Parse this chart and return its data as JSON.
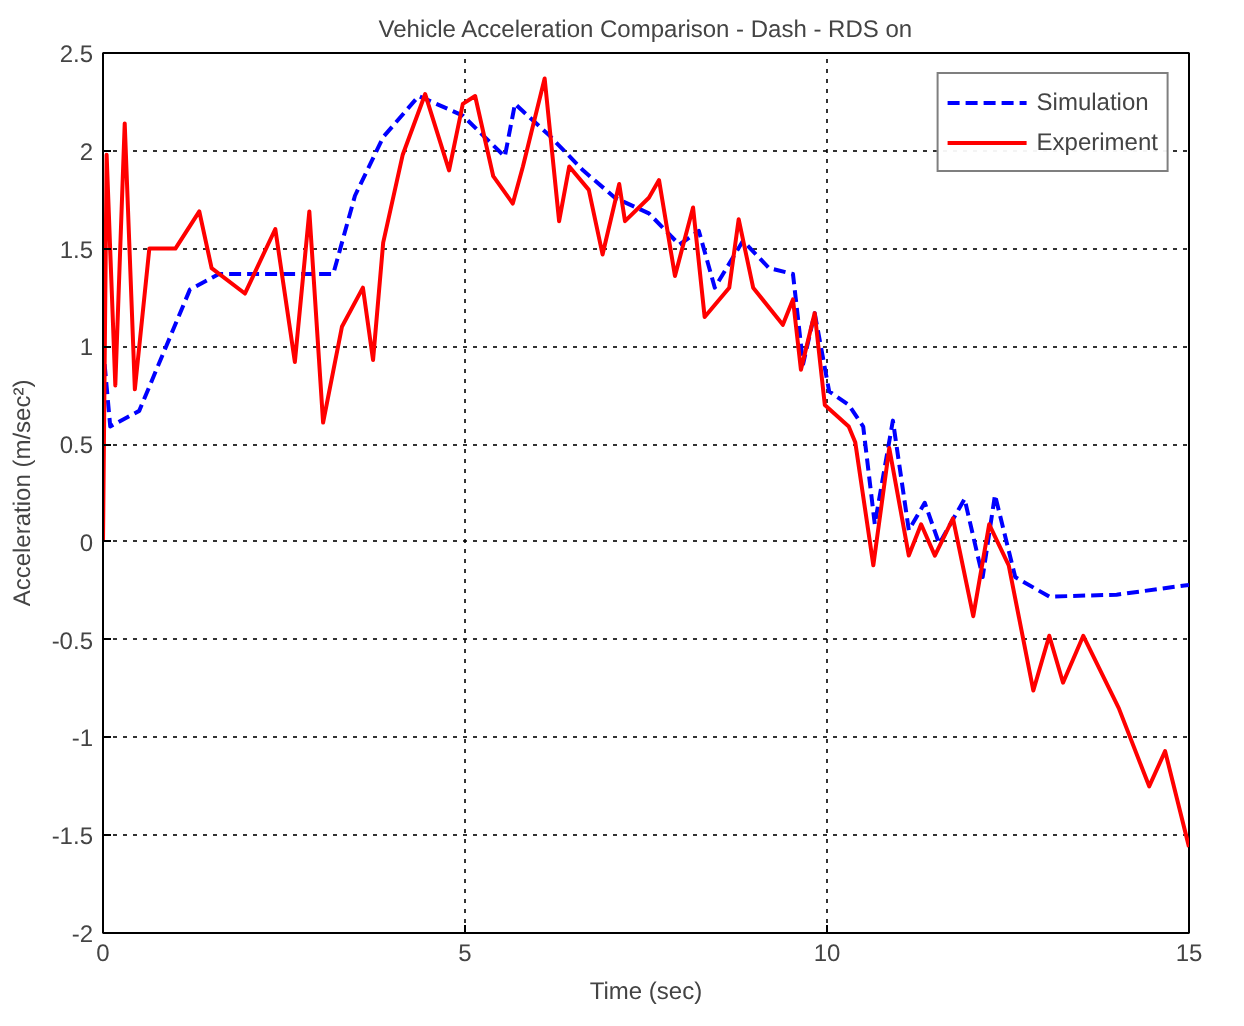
{
  "chart_data": {
    "type": "line",
    "title": "Vehicle Acceleration Comparison - Dash - RDS on",
    "xlabel": "Time (sec)",
    "ylabel": "Acceleration (m/sec²)",
    "xlim": [
      0,
      15
    ],
    "xticks": [
      0,
      5,
      10,
      15
    ],
    "ylim": [
      -2,
      2.5
    ],
    "yticks": [
      -2,
      -1.5,
      -1,
      -0.5,
      0,
      0.5,
      1,
      1.5,
      2,
      2.5
    ],
    "grid": true,
    "legend": "top right",
    "marker": "none",
    "series": [
      {
        "name": "Simulation",
        "color": "#0000ff",
        "line_style": "dashed",
        "x": [
          0,
          0.1,
          0.5,
          1.2,
          1.6,
          3.18,
          3.48,
          3.87,
          4.36,
          4.97,
          5.55,
          5.69,
          6.16,
          6.63,
          7.07,
          7.54,
          7.96,
          8.23,
          8.45,
          8.84,
          9.2,
          9.53,
          9.67,
          9.83,
          10.03,
          10.3,
          10.5,
          10.66,
          10.91,
          11.13,
          11.35,
          11.55,
          11.9,
          12.15,
          12.32,
          12.6,
          13.07,
          14.0,
          15.0
        ],
        "values": [
          1.0,
          0.59,
          0.67,
          1.29,
          1.37,
          1.37,
          1.77,
          2.07,
          2.28,
          2.18,
          1.97,
          2.24,
          2.08,
          1.9,
          1.76,
          1.68,
          1.52,
          1.59,
          1.3,
          1.54,
          1.4,
          1.37,
          0.91,
          1.17,
          0.77,
          0.7,
          0.59,
          0.09,
          0.62,
          0.06,
          0.2,
          -0.01,
          0.22,
          -0.18,
          0.24,
          -0.18,
          -0.28,
          -0.27,
          -0.22
        ]
      },
      {
        "name": "Experiment",
        "color": "#ff0000",
        "line_style": "solid",
        "x": [
          0,
          0.05,
          0.17,
          0.3,
          0.44,
          0.64,
          1.0,
          1.33,
          1.5,
          1.96,
          2.38,
          2.65,
          2.85,
          3.04,
          3.3,
          3.59,
          3.73,
          3.87,
          4.14,
          4.45,
          4.78,
          4.97,
          5.14,
          5.39,
          5.66,
          5.8,
          6.1,
          6.3,
          6.44,
          6.71,
          6.9,
          7.13,
          7.21,
          7.54,
          7.68,
          7.9,
          8.15,
          8.31,
          8.65,
          8.78,
          8.98,
          9.39,
          9.53,
          9.64,
          9.83,
          9.97,
          10.3,
          10.39,
          10.64,
          10.86,
          11.13,
          11.3,
          11.49,
          11.74,
          12.02,
          12.24,
          12.51,
          12.85,
          13.07,
          13.26,
          13.54,
          14.03,
          14.45,
          14.67,
          15.0
        ],
        "values": [
          0,
          1.98,
          0.8,
          2.14,
          0.78,
          1.5,
          1.5,
          1.69,
          1.4,
          1.27,
          1.6,
          0.92,
          1.69,
          0.61,
          1.1,
          1.3,
          0.93,
          1.53,
          1.98,
          2.29,
          1.9,
          2.24,
          2.28,
          1.87,
          1.73,
          1.92,
          2.37,
          1.64,
          1.92,
          1.8,
          1.47,
          1.83,
          1.64,
          1.76,
          1.85,
          1.36,
          1.71,
          1.15,
          1.3,
          1.65,
          1.3,
          1.11,
          1.24,
          0.88,
          1.17,
          0.7,
          0.59,
          0.51,
          -0.12,
          0.48,
          -0.07,
          0.09,
          -0.07,
          0.12,
          -0.38,
          0.09,
          -0.12,
          -0.76,
          -0.48,
          -0.72,
          -0.48,
          -0.85,
          -1.25,
          -1.07,
          -1.56
        ]
      }
    ]
  }
}
